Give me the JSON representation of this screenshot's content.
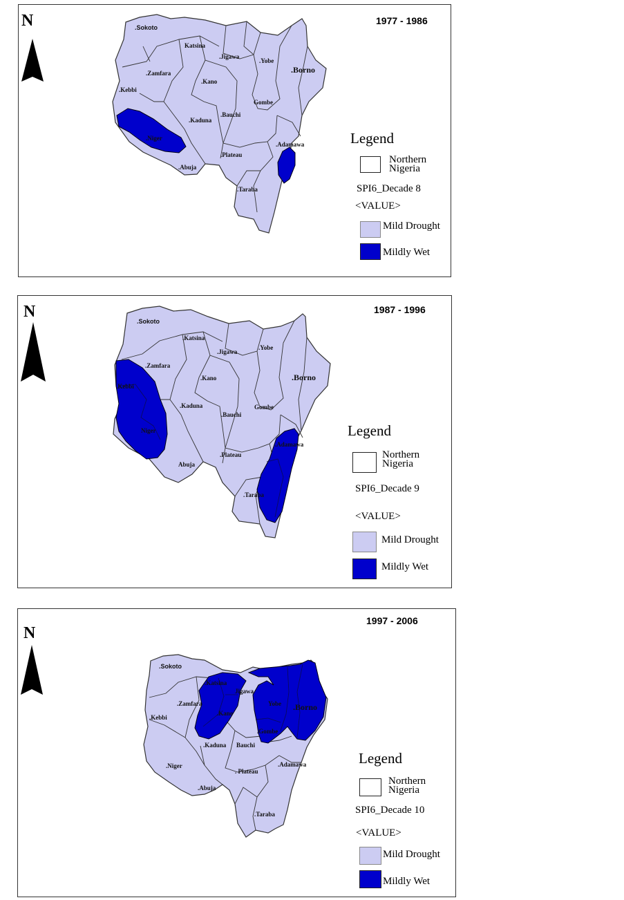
{
  "north_label": "N",
  "colors": {
    "mild_drought": "#ccccf2",
    "mildly_wet": "#0000cc",
    "northern_nigeria_fill": "#ffffff",
    "border": "#222222"
  },
  "panels": [
    {
      "period": "1977 - 1986",
      "legend": {
        "title": "Legend",
        "northern_line1": "Northern",
        "northern_line2": "Nigeria",
        "layer": "SPI6_Decade 8",
        "value_label": "<VALUE>",
        "classes": [
          "Mild Drought",
          "Mildly Wet"
        ]
      },
      "states": {
        "sokoto": ".Sokoto",
        "katsina": "Katsina",
        "jigawa": ".Jigawa",
        "yobe": ".Yobe",
        "borno": ".Borno",
        "zamfara": ".Zamfara",
        "kano": ".Kano",
        "kebbi": ".Kebbi",
        "gombe": "Gombe",
        "kaduna": ".Kaduna",
        "bauchi": ".Bauchi",
        "niger": ".Niger",
        "adamawa": ".Adamawa",
        "plateau": ".Plateau",
        "abuja": ".Abuja",
        "taraba": ".Taraba"
      }
    },
    {
      "period": "1987 - 1996",
      "legend": {
        "title": "Legend",
        "northern_line1": "Northern",
        "northern_line2": "Nigeria",
        "layer": "SPI6_Decade 9",
        "value_label": "<VALUE>",
        "classes": [
          "Mild Drought",
          "Mildly Wet"
        ]
      },
      "states": {
        "sokoto": ".Sokoto",
        "katsina": ".Katsina",
        "jigawa": ".Jigawa",
        "yobe": ".Yobe",
        "borno": ".Borno",
        "zamfara": ".Zamfara",
        "kano": ".Kano",
        "kebbi": ".Kebbi",
        "gombe": "Gombe",
        "kaduna": ".Kaduna",
        "bauchi": ".Bauchi",
        "niger": "Niger",
        "adamawa": ".Adamawa",
        "plateau": ".Plateau",
        "abuja": "Abuja",
        "taraba": ".Taraba"
      }
    },
    {
      "period": "1997 - 2006",
      "legend": {
        "title": "Legend",
        "northern_line1": "Northern",
        "northern_line2": "Nigeria",
        "layer": "SPI6_Decade 10",
        "value_label": "<VALUE>",
        "classes": [
          "Mild Drought",
          "Mildly Wet"
        ]
      },
      "states": {
        "sokoto": ".Sokoto",
        "katsina": ".Katsina",
        "jigawa": "Jigawa",
        "yobe": "Yobe",
        "borno": ".Borno",
        "zamfara": ".Zamfara",
        "kano": ".Kano",
        "kebbi": ".Kebbi",
        "gombe": ".Gombe",
        "kaduna": ".Kaduna",
        "bauchi": "Bauchi",
        "niger": ".Niger",
        "adamawa": ".Adamawa",
        "plateau": ". Plateau",
        "abuja": ".Abuja",
        "taraba": ".Taraba"
      }
    }
  ]
}
